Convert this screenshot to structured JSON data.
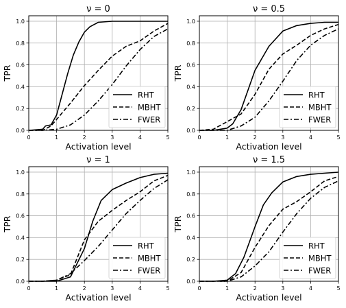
{
  "chart_data": [
    {
      "type": "line",
      "title": "ν = 0",
      "xlabel": "Activation level",
      "ylabel": "TPR",
      "xlim": [
        0,
        5
      ],
      "ylim": [
        0,
        1.05
      ],
      "xticks": [
        "0",
        "1",
        "2",
        "3",
        "4",
        "5"
      ],
      "yticks": [
        "0.0",
        "0.2",
        "0.4",
        "0.6",
        "0.8",
        "1.0"
      ],
      "grid": true,
      "legend_position": "lower-right",
      "series": [
        {
          "name": "RHT",
          "style": "solid",
          "x": [
            0,
            0.5,
            0.6,
            0.8,
            1.0,
            1.2,
            1.4,
            1.6,
            1.8,
            2.0,
            2.2,
            2.5,
            3.0,
            3.5,
            4.0,
            4.5,
            5.0
          ],
          "y": [
            0,
            0.01,
            0.04,
            0.05,
            0.14,
            0.33,
            0.52,
            0.69,
            0.81,
            0.9,
            0.95,
            0.99,
            1.0,
            1.0,
            1.0,
            1.0,
            1.0
          ]
        },
        {
          "name": "MBHT",
          "style": "dashed",
          "x": [
            0,
            0.5,
            0.8,
            1.0,
            1.5,
            2.0,
            2.5,
            3.0,
            3.5,
            4.0,
            4.5,
            5.0
          ],
          "y": [
            0,
            0.0,
            0.04,
            0.1,
            0.25,
            0.41,
            0.55,
            0.68,
            0.77,
            0.82,
            0.91,
            0.98
          ]
        },
        {
          "name": "FWER",
          "style": "dashdot",
          "x": [
            0,
            0.5,
            1.0,
            1.5,
            2.0,
            2.5,
            3.0,
            3.5,
            4.0,
            4.5,
            5.0
          ],
          "y": [
            0,
            0.0,
            0.01,
            0.05,
            0.14,
            0.27,
            0.42,
            0.59,
            0.74,
            0.86,
            0.93
          ]
        }
      ]
    },
    {
      "type": "line",
      "title": "ν = 0.5",
      "xlabel": "Activation level",
      "ylabel": "TPR",
      "xlim": [
        0,
        5
      ],
      "ylim": [
        0,
        1.05
      ],
      "xticks": [
        "0",
        "1",
        "2",
        "3",
        "4",
        "5"
      ],
      "yticks": [
        "0.0",
        "0.2",
        "0.4",
        "0.6",
        "0.8",
        "1.0"
      ],
      "grid": true,
      "legend_position": "lower-right",
      "series": [
        {
          "name": "RHT",
          "style": "solid",
          "x": [
            0,
            0.5,
            1.0,
            1.2,
            1.5,
            2.0,
            2.5,
            3.0,
            3.5,
            4.0,
            4.5,
            5.0
          ],
          "y": [
            0,
            0.0,
            0.02,
            0.06,
            0.19,
            0.55,
            0.77,
            0.91,
            0.96,
            0.98,
            0.99,
            0.99
          ]
        },
        {
          "name": "MBHT",
          "style": "dashed",
          "x": [
            0,
            0.5,
            1.0,
            1.5,
            2.0,
            2.5,
            3.0,
            3.5,
            4.0,
            4.5,
            5.0
          ],
          "y": [
            0,
            0.01,
            0.08,
            0.15,
            0.33,
            0.56,
            0.7,
            0.78,
            0.87,
            0.93,
            0.97
          ]
        },
        {
          "name": "FWER",
          "style": "dashdot",
          "x": [
            0,
            0.5,
            1.0,
            1.5,
            2.0,
            2.5,
            3.0,
            3.5,
            4.0,
            4.5,
            5.0
          ],
          "y": [
            0,
            0.0,
            0.0,
            0.04,
            0.12,
            0.27,
            0.45,
            0.64,
            0.78,
            0.87,
            0.93
          ]
        }
      ]
    },
    {
      "type": "line",
      "title": "ν = 1",
      "xlabel": "Activation level",
      "ylabel": "TPR",
      "xlim": [
        0,
        5
      ],
      "ylim": [
        0,
        1.05
      ],
      "xticks": [
        "0",
        "1",
        "2",
        "3",
        "4",
        "5"
      ],
      "yticks": [
        "0.0",
        "0.2",
        "0.4",
        "0.6",
        "0.8",
        "1.0"
      ],
      "grid": true,
      "legend_position": "lower-right",
      "series": [
        {
          "name": "RHT",
          "style": "solid",
          "x": [
            0,
            0.5,
            1.0,
            1.5,
            2.0,
            2.3,
            2.6,
            3.0,
            3.5,
            4.0,
            4.5,
            5.0
          ],
          "y": [
            0,
            0.0,
            0.0,
            0.04,
            0.3,
            0.55,
            0.74,
            0.84,
            0.9,
            0.95,
            0.98,
            0.99
          ]
        },
        {
          "name": "MBHT",
          "style": "dashed",
          "x": [
            0,
            0.5,
            1.0,
            1.5,
            2.0,
            2.5,
            3.0,
            3.5,
            4.0,
            4.5,
            5.0
          ],
          "y": [
            0,
            0.0,
            0.01,
            0.06,
            0.38,
            0.55,
            0.65,
            0.74,
            0.82,
            0.92,
            0.97
          ]
        },
        {
          "name": "FWER",
          "style": "dashdot",
          "x": [
            0,
            0.5,
            1.0,
            1.5,
            2.0,
            2.5,
            3.0,
            3.5,
            4.0,
            4.5,
            5.0
          ],
          "y": [
            0,
            0.0,
            0.01,
            0.07,
            0.19,
            0.32,
            0.47,
            0.62,
            0.74,
            0.85,
            0.93
          ]
        }
      ]
    },
    {
      "type": "line",
      "title": "ν = 1.5",
      "xlabel": "Activation level",
      "ylabel": "TPR",
      "xlim": [
        0,
        5
      ],
      "ylim": [
        0,
        1.05
      ],
      "xticks": [
        "0",
        "1",
        "2",
        "3",
        "4",
        "5"
      ],
      "yticks": [
        "0.0",
        "0.2",
        "0.4",
        "0.6",
        "0.8",
        "1.0"
      ],
      "grid": true,
      "legend_position": "lower-right",
      "series": [
        {
          "name": "RHT",
          "style": "solid",
          "x": [
            0,
            0.5,
            1.0,
            1.3,
            1.6,
            2.0,
            2.3,
            2.6,
            3.0,
            3.5,
            4.0,
            4.5,
            5.0
          ],
          "y": [
            0,
            0.0,
            0.01,
            0.07,
            0.22,
            0.5,
            0.7,
            0.81,
            0.91,
            0.96,
            0.98,
            0.99,
            1.0
          ]
        },
        {
          "name": "MBHT",
          "style": "dashed",
          "x": [
            0,
            0.5,
            1.0,
            1.5,
            2.0,
            2.5,
            3.0,
            3.5,
            4.0,
            4.5,
            5.0
          ],
          "y": [
            0,
            0.0,
            0.0,
            0.08,
            0.31,
            0.51,
            0.66,
            0.73,
            0.82,
            0.92,
            0.96
          ]
        },
        {
          "name": "FWER",
          "style": "dashdot",
          "x": [
            0,
            0.5,
            1.0,
            1.5,
            2.0,
            2.5,
            3.0,
            3.5,
            4.0,
            4.5,
            5.0
          ],
          "y": [
            0,
            0.0,
            0.0,
            0.04,
            0.14,
            0.27,
            0.45,
            0.62,
            0.76,
            0.86,
            0.92
          ]
        }
      ]
    }
  ]
}
